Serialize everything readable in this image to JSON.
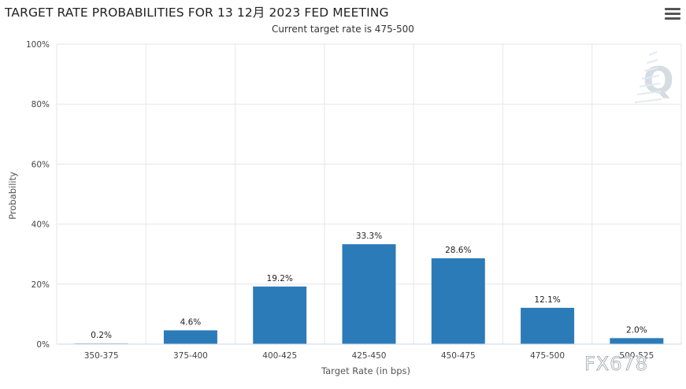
{
  "header": {
    "title": "TARGET RATE PROBABILITIES FOR 13 12月 2023 FED MEETING",
    "subtitle": "Current target rate is 475-500"
  },
  "menu_icon": "hamburger-menu-icon",
  "watermarks": {
    "corner_logo": "Q",
    "brand": "FX678"
  },
  "chart_data": {
    "type": "bar",
    "title": "TARGET RATE PROBABILITIES FOR 13 12月 2023 FED MEETING",
    "subtitle": "Current target rate is 475-500",
    "xlabel": "Target Rate (in bps)",
    "ylabel": "Probability",
    "ylim": [
      0,
      100
    ],
    "yticks": [
      "0%",
      "20%",
      "40%",
      "60%",
      "80%",
      "100%"
    ],
    "categories": [
      "350-375",
      "375-400",
      "400-425",
      "425-450",
      "450-475",
      "475-500",
      "500-525"
    ],
    "values": [
      0.2,
      4.6,
      19.2,
      33.3,
      28.6,
      12.1,
      2.0
    ],
    "data_labels": [
      "0.2%",
      "4.6%",
      "19.2%",
      "33.3%",
      "28.6%",
      "12.1%",
      "2.0%"
    ],
    "bar_color": "#2b7bb9",
    "grid": true,
    "legend": "none"
  }
}
